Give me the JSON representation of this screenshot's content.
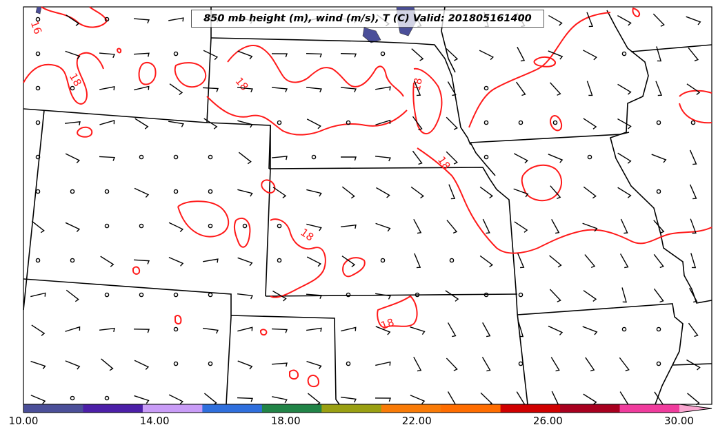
{
  "title": "850 mb height (m), wind (m/s), T (C) Valid: 201805161400",
  "contour_labels": [
    "16",
    "18",
    "18",
    "18",
    "18",
    "18",
    "18"
  ],
  "colorbar": {
    "ticks": [
      "10.00",
      "14.00",
      "18.00",
      "22.00",
      "26.00",
      "30.00"
    ],
    "range": [
      10,
      31
    ],
    "extend": "max",
    "colors": [
      "#4b4f99",
      "#4c1fa8",
      "#c99cf7",
      "#2f6fdd",
      "#218447",
      "#9aa012",
      "#f97b07",
      "#ff6d00",
      "#d00000",
      "#a8001f",
      "#f03c9d",
      "#f9a6d0"
    ]
  },
  "colors": {
    "contour": "#ff1a1a",
    "boundary": "#000000",
    "water": "#4b4f99",
    "frame": "#000000"
  }
}
